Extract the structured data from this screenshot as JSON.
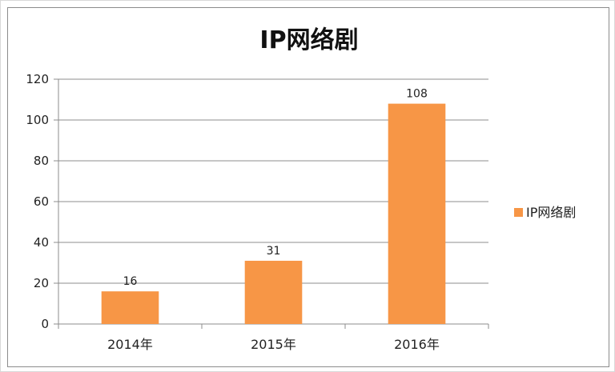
{
  "chart_data": {
    "type": "bar",
    "title": "IP网络剧",
    "categories": [
      "2014年",
      "2015年",
      "2016年"
    ],
    "series": [
      {
        "name": "IP网络剧",
        "values": [
          16,
          31,
          108
        ],
        "color": "#f79646"
      }
    ],
    "ylim": [
      0,
      120
    ],
    "yticks": [
      0,
      20,
      40,
      60,
      80,
      100,
      120
    ],
    "grid": true,
    "legend": "right",
    "data_labels": true
  }
}
